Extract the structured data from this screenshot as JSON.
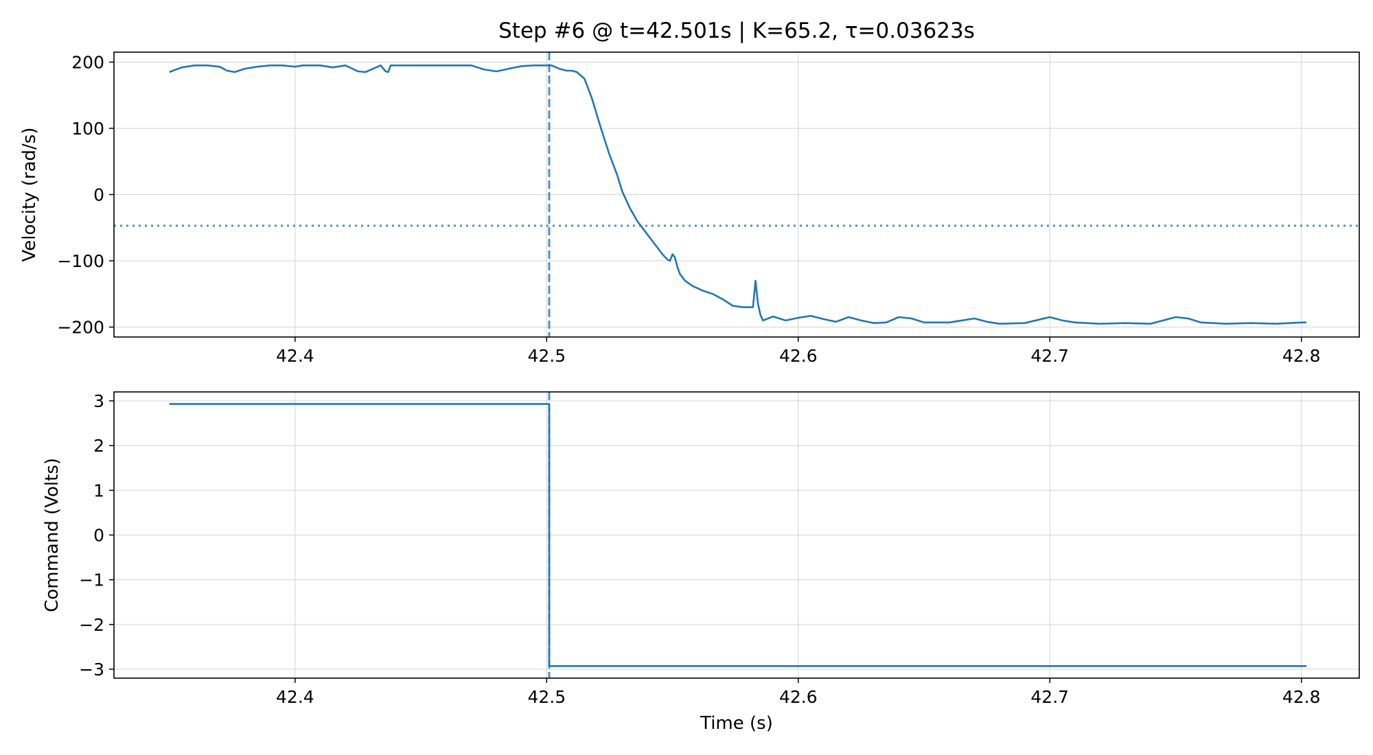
{
  "figure": {
    "title": "Step #6 @ t=42.501s  |  K=65.2, τ=0.03623s"
  },
  "colors": {
    "series": "#1f77b4",
    "grid": "#d3d3d3",
    "axes": "#000000"
  },
  "chart_data": [
    {
      "type": "line",
      "ylabel": "Velocity (rad/s)",
      "xlabel": "",
      "xlim": [
        42.328,
        42.823
      ],
      "ylim": [
        -215,
        215
      ],
      "xticks": [
        42.4,
        42.5,
        42.6,
        42.7,
        42.8
      ],
      "xtick_labels": [
        "42.4",
        "42.5",
        "42.6",
        "42.7",
        "42.8"
      ],
      "yticks": [
        200,
        100,
        0,
        -100,
        -200
      ],
      "ytick_labels": [
        "200",
        "100",
        "0",
        "−100",
        "−200"
      ],
      "grid": true,
      "step_time": 42.501,
      "threshold": -47,
      "series": [
        {
          "x": [
            42.35,
            42.355,
            42.36,
            42.365,
            42.37,
            42.373,
            42.376,
            42.38,
            42.385,
            42.39,
            42.395,
            42.4,
            42.403,
            42.406,
            42.41,
            42.415,
            42.42,
            42.425,
            42.428,
            42.431,
            42.434,
            42.436,
            42.437,
            42.438,
            42.44,
            42.445,
            42.45,
            42.46,
            42.47,
            42.475,
            42.48,
            42.485,
            42.49,
            42.495,
            42.5,
            42.502,
            42.505,
            42.508,
            42.51,
            42.512,
            42.515,
            42.518,
            42.52,
            42.522,
            42.525,
            42.528,
            42.53,
            42.533,
            42.536,
            42.54,
            42.543,
            42.546,
            42.548,
            42.549,
            42.55,
            42.551,
            42.552,
            42.553,
            42.555,
            42.558,
            42.562,
            42.566,
            42.57,
            42.574,
            42.578,
            42.582,
            42.583,
            42.584,
            42.585,
            42.586,
            42.59,
            42.595,
            42.6,
            42.605,
            42.61,
            42.615,
            42.62,
            42.625,
            42.63,
            42.635,
            42.64,
            42.645,
            42.65,
            42.66,
            42.67,
            42.675,
            42.68,
            42.69,
            42.7,
            42.705,
            42.71,
            42.72,
            42.73,
            42.74,
            42.75,
            42.755,
            42.76,
            42.77,
            42.78,
            42.79,
            42.8,
            42.802
          ],
          "y": [
            185,
            192,
            195,
            195,
            193,
            187,
            185,
            190,
            193,
            195,
            195,
            193,
            195,
            195,
            195,
            192,
            195,
            186,
            185,
            190,
            195,
            186,
            185,
            195,
            195,
            195,
            195,
            195,
            195,
            189,
            186,
            190,
            194,
            195,
            195,
            195,
            190,
            187,
            187,
            185,
            175,
            145,
            120,
            95,
            60,
            30,
            5,
            -20,
            -40,
            -60,
            -75,
            -90,
            -98,
            -100,
            -90,
            -95,
            -110,
            -120,
            -130,
            -138,
            -145,
            -150,
            -158,
            -168,
            -170,
            -170,
            -130,
            -165,
            -182,
            -190,
            -184,
            -190,
            -186,
            -183,
            -188,
            -192,
            -185,
            -190,
            -194,
            -193,
            -185,
            -187,
            -193,
            -193,
            -187,
            -192,
            -195,
            -194,
            -185,
            -190,
            -193,
            -195,
            -194,
            -195,
            -185,
            -187,
            -193,
            -195,
            -194,
            -195,
            -193,
            -193
          ]
        }
      ]
    },
    {
      "type": "line",
      "ylabel": "Command (Volts)",
      "xlabel": "Time (s)",
      "xlim": [
        42.328,
        42.823
      ],
      "ylim": [
        -3.2,
        3.2
      ],
      "xticks": [
        42.4,
        42.5,
        42.6,
        42.7,
        42.8
      ],
      "xtick_labels": [
        "42.4",
        "42.5",
        "42.6",
        "42.7",
        "42.8"
      ],
      "yticks": [
        3,
        2,
        1,
        0,
        -1,
        -2,
        -3
      ],
      "ytick_labels": [
        "3",
        "2",
        "1",
        "0",
        "−1",
        "−2",
        "−3"
      ],
      "grid": true,
      "step_time": 42.501,
      "series": [
        {
          "x": [
            42.35,
            42.501,
            42.501,
            42.802
          ],
          "y": [
            2.93,
            2.93,
            -2.93,
            -2.93
          ]
        }
      ]
    }
  ]
}
